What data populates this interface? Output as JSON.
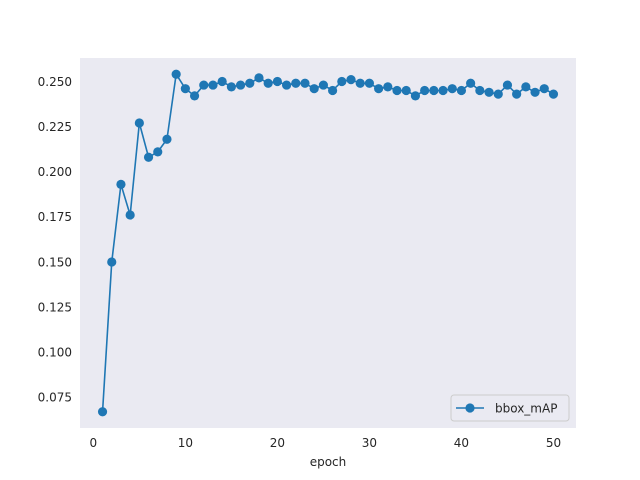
{
  "chart_data": {
    "type": "line",
    "title": "",
    "xlabel": "epoch",
    "ylabel": "",
    "xlim": [
      -1.45,
      52.45
    ],
    "ylim": [
      0.058,
      0.263
    ],
    "xticks": [
      0,
      10,
      20,
      30,
      40,
      50
    ],
    "xtick_labels": [
      "0",
      "10",
      "20",
      "30",
      "40",
      "50"
    ],
    "yticks": [
      0.075,
      0.1,
      0.125,
      0.15,
      0.175,
      0.2,
      0.225,
      0.25
    ],
    "ytick_labels": [
      "0.075",
      "0.100",
      "0.125",
      "0.150",
      "0.175",
      "0.200",
      "0.225",
      "0.250"
    ],
    "grid": false,
    "legend_position": "lower-right",
    "series": [
      {
        "name": "bbox_mAP",
        "color": "#1f77b4",
        "marker": "circle",
        "x": [
          1,
          2,
          3,
          4,
          5,
          6,
          7,
          8,
          9,
          10,
          11,
          12,
          13,
          14,
          15,
          16,
          17,
          18,
          19,
          20,
          21,
          22,
          23,
          24,
          25,
          26,
          27,
          28,
          29,
          30,
          31,
          32,
          33,
          34,
          35,
          36,
          37,
          38,
          39,
          40,
          41,
          42,
          43,
          44,
          45,
          46,
          47,
          48,
          49,
          50
        ],
        "y": [
          0.067,
          0.15,
          0.193,
          0.176,
          0.227,
          0.208,
          0.211,
          0.218,
          0.254,
          0.246,
          0.242,
          0.248,
          0.248,
          0.25,
          0.247,
          0.248,
          0.249,
          0.252,
          0.249,
          0.25,
          0.248,
          0.249,
          0.249,
          0.246,
          0.248,
          0.245,
          0.25,
          0.251,
          0.249,
          0.249,
          0.246,
          0.247,
          0.245,
          0.245,
          0.242,
          0.245,
          0.245,
          0.245,
          0.246,
          0.245,
          0.249,
          0.245,
          0.244,
          0.243,
          0.248,
          0.243,
          0.247,
          0.244,
          0.246,
          0.243
        ]
      }
    ]
  }
}
